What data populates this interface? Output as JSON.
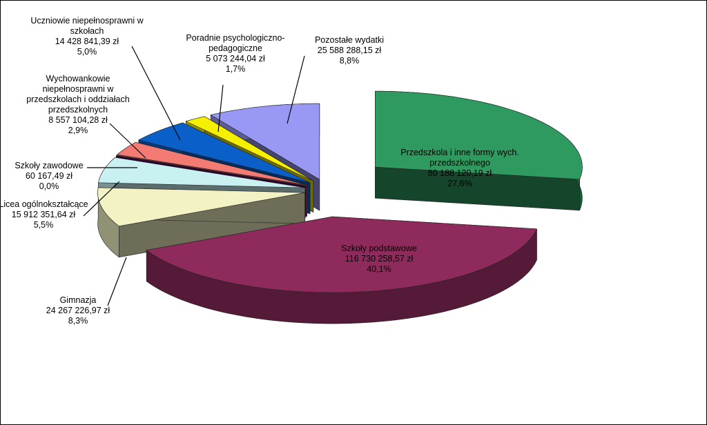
{
  "chart_data": {
    "type": "pie3d",
    "categories": [
      "Przedszkola i inne formy wych. przedszkolnego",
      "Szkoły podstawowe",
      "Gimnazja",
      "Licea ogólnokształcące",
      "Szkoły zawodowe",
      "Wychowankowie niepełnosprawni w przedszkolach i oddziałach przedszkolnych",
      "Uczniowie niepełnosprawni w szkołach",
      "Poradnie psychologiczno-pedagogiczne",
      "Pozostałe wydatki"
    ],
    "values": [
      80188120.19,
      116730258.57,
      24267226.97,
      15912351.64,
      60167.49,
      8557104.28,
      14428841.39,
      5073244.04,
      25588288.15
    ],
    "value_labels": [
      "80 188 120,19 zł",
      "116 730 258,57 zł",
      "24 267 226,97 zł",
      "15 912 351,64 zł",
      "60 167,49 zł",
      "8 557 104,28 zł",
      "14 428 841,39 zł",
      "5 073 244,04 zł",
      "25 588 288,15 zł"
    ],
    "percent_labels": [
      "27,6%",
      "40,1%",
      "8,3%",
      "5,5%",
      "0,0%",
      "2,9%",
      "5,0%",
      "1,7%",
      "8,8%"
    ],
    "colors": [
      "#2f9a5f",
      "#8e2b5c",
      "#f2f2c4",
      "#c9f1f1",
      "#660066",
      "#f47b73",
      "#0a5fc8",
      "#f5f000",
      "#9999f5"
    ]
  }
}
